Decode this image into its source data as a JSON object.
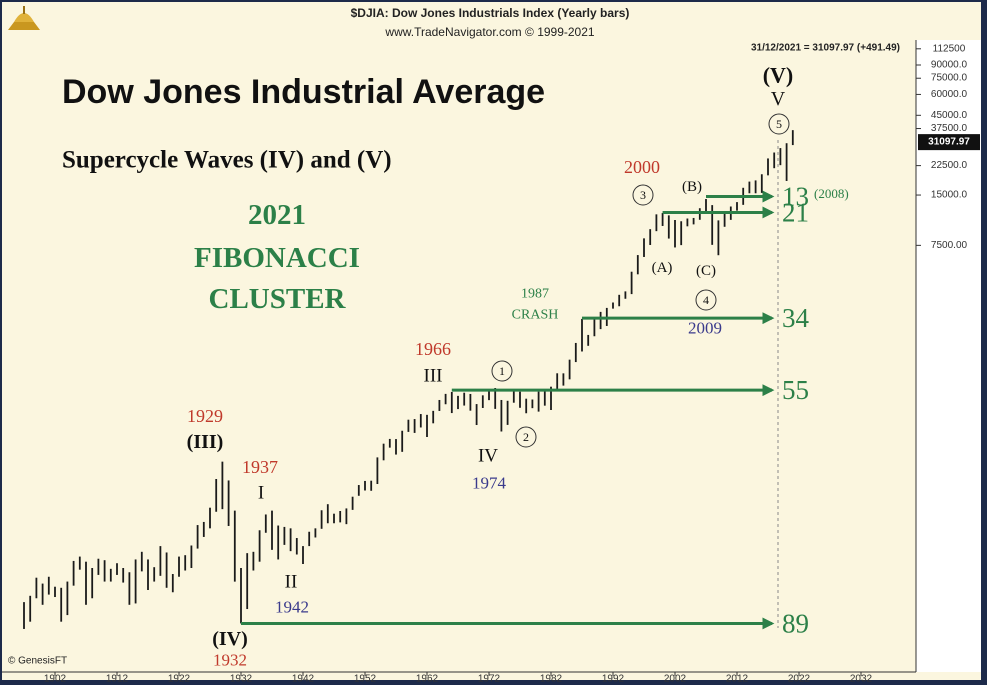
{
  "chart_data": {
    "type": "range-bar",
    "header": "$DJIA:  Dow Jones Industrials Index  (Yearly bars)",
    "source": "www.TradeNavigator.com © 1999-2021",
    "last_quote": "31/12/2021 = 31097.97 (+491.49)",
    "credit": "© GenesisFT",
    "title": "Dow Jones Industrial Average",
    "subtitle": "Supercycle Waves (IV) and (V)",
    "callout": [
      "2021",
      "FIBONACCI",
      "CLUSTER"
    ],
    "log_scale": true,
    "color": "#1a1a1a",
    "fib_color": "#2c8048",
    "x": [
      1897,
      1898,
      1899,
      1900,
      1901,
      1902,
      1903,
      1904,
      1905,
      1906,
      1907,
      1908,
      1909,
      1910,
      1911,
      1912,
      1913,
      1914,
      1915,
      1916,
      1917,
      1918,
      1919,
      1920,
      1921,
      1922,
      1923,
      1924,
      1925,
      1926,
      1927,
      1928,
      1929,
      1930,
      1931,
      1932,
      1933,
      1934,
      1935,
      1936,
      1937,
      1938,
      1939,
      1940,
      1941,
      1942,
      1943,
      1944,
      1945,
      1946,
      1947,
      1948,
      1949,
      1950,
      1951,
      1952,
      1953,
      1954,
      1955,
      1956,
      1957,
      1958,
      1959,
      1960,
      1961,
      1962,
      1963,
      1964,
      1965,
      1966,
      1967,
      1968,
      1969,
      1970,
      1971,
      1972,
      1973,
      1974,
      1975,
      1976,
      1977,
      1978,
      1979,
      1980,
      1981,
      1982,
      1983,
      1984,
      1985,
      1986,
      1987,
      1988,
      1989,
      1990,
      1991,
      1992,
      1993,
      1994,
      1995,
      1996,
      1997,
      1998,
      1999,
      2000,
      2001,
      2002,
      2003,
      2004,
      2005,
      2006,
      2007,
      2008,
      2009,
      2010,
      2011,
      2012,
      2013,
      2014,
      2015,
      2016,
      2017,
      2018,
      2019,
      2020,
      2021
    ],
    "high": [
      55,
      60,
      77,
      71,
      78,
      68,
      67,
      73,
      97,
      103,
      96,
      88,
      100,
      98,
      87,
      94,
      88,
      83,
      99,
      110,
      99,
      89,
      119,
      109,
      81,
      103,
      105,
      120,
      159,
      166,
      202,
      300,
      381,
      294,
      194,
      88,
      108,
      110,
      148,
      184,
      194,
      158,
      155,
      152,
      133,
      119,
      145,
      152,
      195,
      212,
      186,
      193,
      200,
      235,
      276,
      292,
      293,
      404,
      488,
      521,
      520,
      583,
      679,
      685,
      734,
      726,
      767,
      891,
      969,
      995,
      943,
      985,
      968,
      842,
      950,
      1036,
      1051,
      891,
      881,
      1014,
      999,
      907,
      897,
      1000,
      1024,
      1070,
      1287,
      1286,
      1553,
      1955,
      2722,
      2183,
      2791,
      2999,
      3168,
      3413,
      3794,
      3978,
      5216,
      6560,
      8259,
      9374,
      11497,
      11722,
      11337,
      10635,
      10453,
      10855,
      10940,
      12510,
      14198,
      13058,
      10580,
      11585,
      12810,
      13610,
      16577,
      18054,
      18351,
      19975,
      24838,
      26951,
      28645,
      30637,
      36679
    ],
    "low": [
      38,
      42,
      58,
      53,
      61,
      59,
      42,
      46,
      69,
      86,
      53,
      58,
      80,
      73,
      73,
      80,
      72,
      53,
      54,
      84,
      65,
      73,
      79,
      67,
      63,
      78,
      85,
      88,
      115,
      135,
      152,
      191,
      198,
      157,
      73,
      41,
      50,
      85,
      96,
      143,
      113,
      99,
      121,
      111,
      106,
      93,
      119,
      134,
      151,
      163,
      163,
      165,
      161,
      196,
      238,
      256,
      255,
      280,
      388,
      462,
      420,
      436,
      574,
      566,
      610,
      535,
      646,
      766,
      840,
      744,
      786,
      825,
      769,
      631,
      798,
      889,
      788,
      577,
      632,
      858,
      800,
      742,
      796,
      759,
      824,
      776,
      1027,
      1086,
      1184,
      1502,
      1738,
      1879,
      2144,
      2365,
      2470,
      3136,
      3241,
      3593,
      3832,
      5032,
      6391,
      7539,
      9120,
      9796,
      8235,
      7286,
      7524,
      9749,
      10012,
      10667,
      11939,
      7552,
      6547,
      9686,
      10655,
      12101,
      13104,
      15373,
      15370,
      15451,
      19677,
      21713,
      22638,
      18214,
      29856
    ],
    "xlim": [
      1896,
      2040
    ],
    "xticks": [
      1902,
      1912,
      1922,
      1932,
      1942,
      1952,
      1962,
      1972,
      1982,
      1992,
      2002,
      2012,
      2022,
      2032
    ],
    "ylim": [
      21,
      127000
    ],
    "yticks": [
      112500,
      {
        "value": 90000,
        "label": "90000.0"
      },
      {
        "value": 75000,
        "label": "75000.0"
      },
      {
        "value": 60000,
        "label": "60000.0"
      },
      {
        "value": 45000,
        "label": "45000.0"
      },
      {
        "value": 37500,
        "label": "37500.0"
      },
      {
        "value": 22500,
        "label": "22500.0"
      },
      {
        "value": 15000,
        "label": "15000.0"
      },
      {
        "value": 7500,
        "label": "7500.00"
      }
    ],
    "last_value": {
      "value": 31097.97,
      "label": "31097.97"
    },
    "fib_lines": [
      {
        "label": "13",
        "note": "(2008)",
        "level": 14700,
        "from": 2007
      },
      {
        "label": "21",
        "level": 11800,
        "from": 2000
      },
      {
        "label": "34",
        "level": 2750,
        "from": 1987
      },
      {
        "label": "55",
        "level": 1020,
        "from": 1966
      },
      {
        "label": "89",
        "level": 41,
        "from": 1932
      }
    ],
    "annotations": [
      "(V)",
      "V",
      "5",
      "2000",
      "3",
      "(B)",
      "(A)",
      "(C)",
      "4",
      "2009",
      "1987",
      "CRASH",
      "1966",
      "III",
      "1",
      "2",
      "IV",
      "1974",
      "1929",
      "(III)",
      "1937",
      "I",
      "II",
      "1942",
      "(IV)",
      "1932"
    ]
  }
}
